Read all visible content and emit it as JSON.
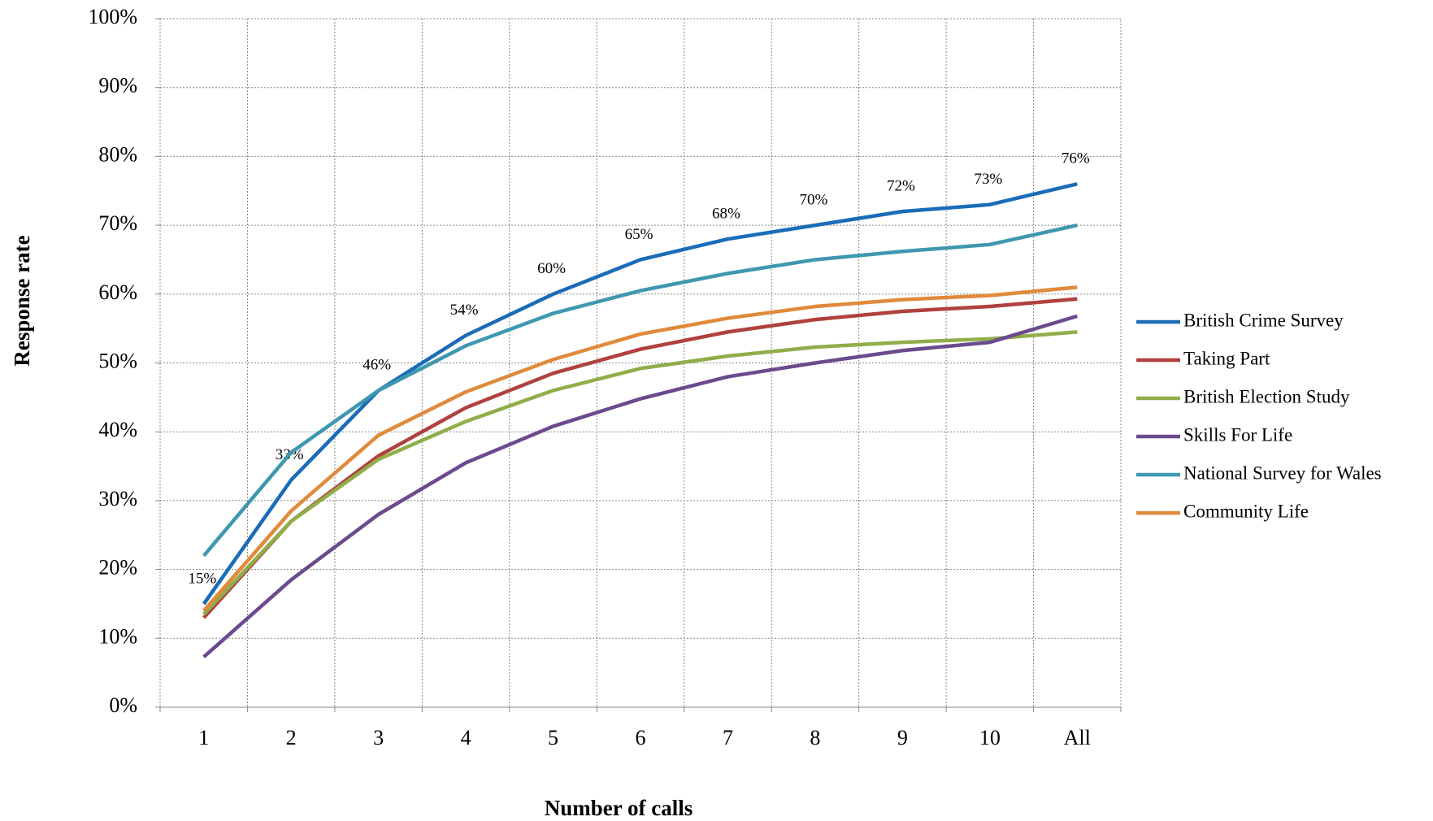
{
  "chart_data": {
    "type": "line",
    "x_label": "Number of calls",
    "y_label": "Response rate",
    "categories": [
      "1",
      "2",
      "3",
      "4",
      "5",
      "6",
      "7",
      "8",
      "9",
      "10",
      "All"
    ],
    "series": [
      {
        "name": "British Crime Survey",
        "color": "#1a6cb8",
        "values": [
          15,
          33,
          46,
          54,
          60,
          65,
          68,
          70,
          72,
          73,
          76
        ],
        "value_labels": [
          "15%",
          "33%",
          "46%",
          "54%",
          "60%",
          "65%",
          "68%",
          "70%",
          "72%",
          "73%",
          "76%"
        ]
      },
      {
        "name": "Taking Part",
        "color": "#b0413e",
        "values": [
          13,
          27,
          36.5,
          43.5,
          48.5,
          52,
          54.5,
          56.3,
          57.5,
          58.2,
          59.3
        ]
      },
      {
        "name": "British Election Study",
        "color": "#8fae4a",
        "values": [
          13.5,
          27,
          36,
          41.5,
          46,
          49.2,
          51,
          52.3,
          53,
          53.5,
          54.5
        ]
      },
      {
        "name": "Skills For Life",
        "color": "#6b4a8e",
        "values": [
          7.3,
          18.5,
          28,
          35.5,
          40.8,
          44.8,
          48,
          50,
          51.8,
          53,
          56.8
        ]
      },
      {
        "name": "National Survey for Wales",
        "color": "#3f97b0",
        "values": [
          22,
          37,
          46,
          52.5,
          57.2,
          60.5,
          63,
          65,
          66.2,
          67.2,
          70
        ]
      },
      {
        "name": "Community Life",
        "color": "#e08a3c",
        "values": [
          14,
          28.5,
          39.5,
          45.8,
          50.5,
          54.2,
          56.5,
          58.2,
          59.2,
          59.8,
          61
        ]
      }
    ],
    "ylim": [
      0,
      100
    ],
    "yticks": [
      {
        "value": 0,
        "label": "0%"
      },
      {
        "value": 10,
        "label": "10%"
      },
      {
        "value": 20,
        "label": "20%"
      },
      {
        "value": 30,
        "label": "30%"
      },
      {
        "value": 40,
        "label": "40%"
      },
      {
        "value": 50,
        "label": "50%"
      },
      {
        "value": 60,
        "label": "60%"
      },
      {
        "value": 70,
        "label": "70%"
      },
      {
        "value": 80,
        "label": "80%"
      },
      {
        "value": 90,
        "label": "90%"
      },
      {
        "value": 100,
        "label": "100%"
      }
    ],
    "grid": true,
    "legend": "right"
  }
}
